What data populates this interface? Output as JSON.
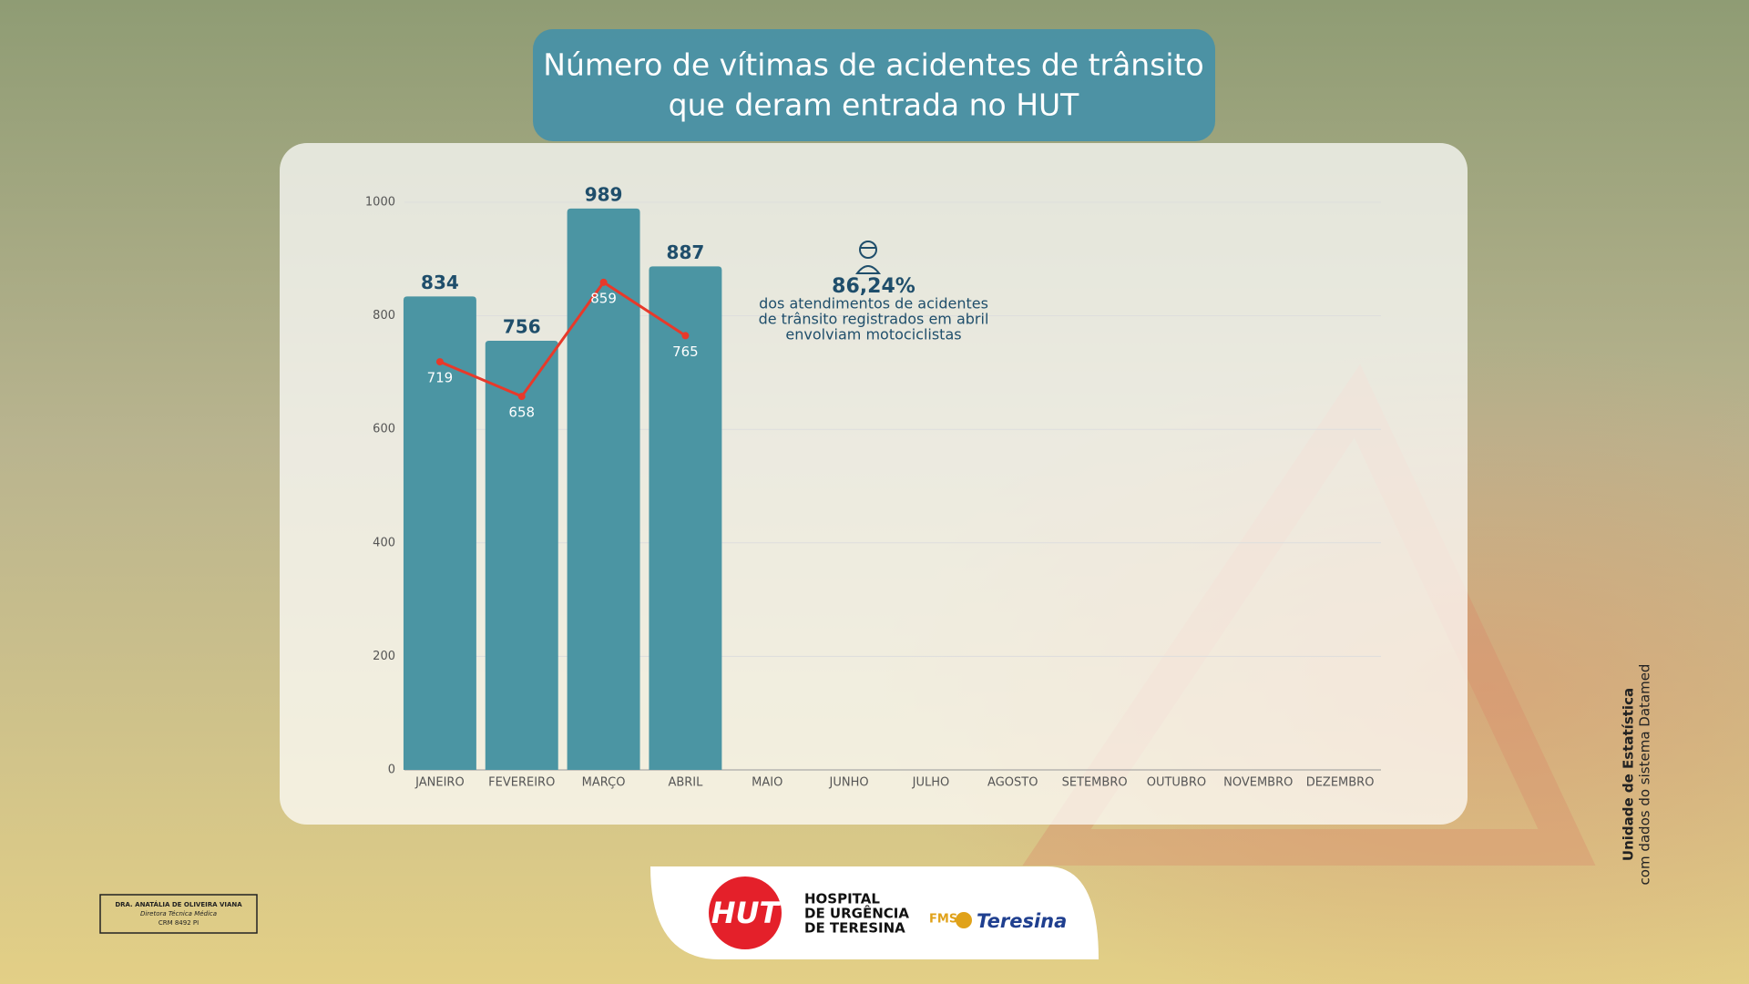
{
  "chart_data": {
    "type": "bar",
    "title": [
      "Número de vítimas de acidentes de trânsito",
      "que deram entrada no HUT"
    ],
    "categories": [
      "JANEIRO",
      "FEVEREIRO",
      "MARÇO",
      "ABRIL",
      "MAIO",
      "JUNHO",
      "JULHO",
      "AGOSTO",
      "SETEMBRO",
      "OUTUBRO",
      "NOVEMBRO",
      "DEZEMBRO"
    ],
    "series": [
      {
        "type": "bar",
        "color": "#4b95a3",
        "values": [
          834,
          756,
          989,
          887,
          null,
          null,
          null,
          null,
          null,
          null,
          null,
          null
        ]
      },
      {
        "type": "line",
        "color": "#e8392a",
        "values": [
          719,
          658,
          859,
          765,
          null,
          null,
          null,
          null,
          null,
          null,
          null,
          null
        ]
      }
    ],
    "ylim": [
      0,
      1000
    ],
    "yticks": [
      0,
      200,
      400,
      600,
      800,
      1000
    ],
    "grid": true,
    "annotation": {
      "value": "86,24%",
      "lines": [
        "dos atendimentos de acidentes",
        "de trânsito registrados em abril",
        "envolviam motociclistas"
      ]
    }
  },
  "source": [
    "Unidade de Estatística",
    "com dados do sistema Datamed"
  ],
  "signature": [
    "DRA. ANATÁLIA DE OLIVEIRA VIANA",
    "Diretora Técnica Médica",
    "CRM 8492 PI"
  ],
  "logos": {
    "hut": "HUT",
    "hospital": [
      "HOSPITAL",
      "DE URGÊNCIA",
      "DE TERESINA"
    ],
    "fms": "FMS",
    "city": "Teresina"
  }
}
